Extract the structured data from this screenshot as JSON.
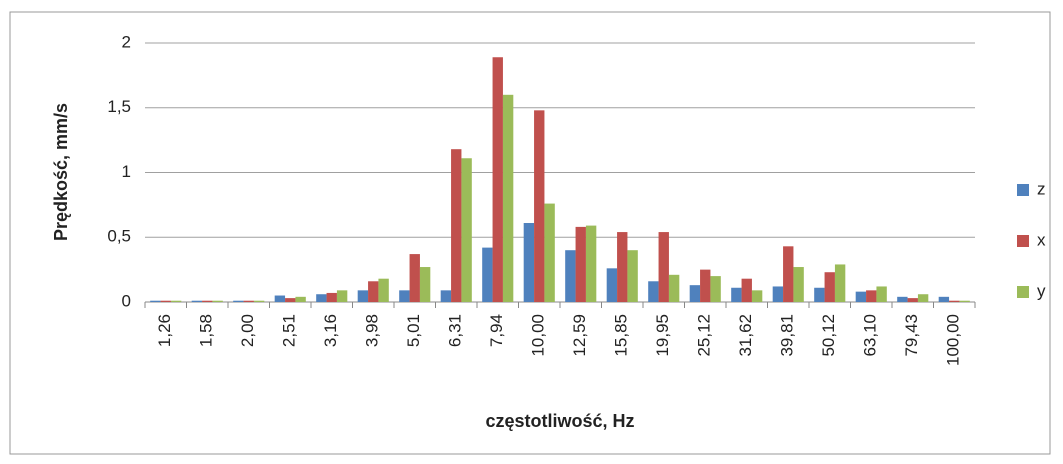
{
  "chart_data": {
    "type": "bar",
    "x_label": "częstotliwość, Hz",
    "y_label": "Prędkość, mm/s",
    "categories": [
      "1,26",
      "1,58",
      "2,00",
      "2,51",
      "3,16",
      "3,98",
      "5,01",
      "6,31",
      "7,94",
      "10,00",
      "12,59",
      "15,85",
      "19,95",
      "25,12",
      "31,62",
      "39,81",
      "50,12",
      "63,10",
      "79,43",
      "100,00"
    ],
    "series": [
      {
        "name": "z",
        "color": "#4f81bd",
        "values": [
          0.01,
          0.01,
          0.01,
          0.05,
          0.06,
          0.09,
          0.09,
          0.09,
          0.42,
          0.61,
          0.4,
          0.26,
          0.16,
          0.13,
          0.11,
          0.12,
          0.11,
          0.08,
          0.04,
          0.04
        ]
      },
      {
        "name": "x",
        "color": "#c0504d",
        "values": [
          0.01,
          0.01,
          0.01,
          0.03,
          0.07,
          0.16,
          0.37,
          1.18,
          1.89,
          1.48,
          0.58,
          0.54,
          0.54,
          0.25,
          0.18,
          0.43,
          0.23,
          0.09,
          0.03,
          0.01
        ]
      },
      {
        "name": "y",
        "color": "#9bbb59",
        "values": [
          0.01,
          0.01,
          0.01,
          0.04,
          0.09,
          0.18,
          0.27,
          1.11,
          1.6,
          0.76,
          0.59,
          0.4,
          0.21,
          0.2,
          0.09,
          0.27,
          0.29,
          0.12,
          0.06,
          0.01
        ]
      }
    ],
    "ylim": [
      0,
      2
    ],
    "yticks": [
      0,
      {
        "value": 0.5,
        "label": "0,5"
      },
      1,
      {
        "value": 1.5,
        "label": "1,5"
      },
      2
    ],
    "grid": true,
    "legend": "right"
  }
}
